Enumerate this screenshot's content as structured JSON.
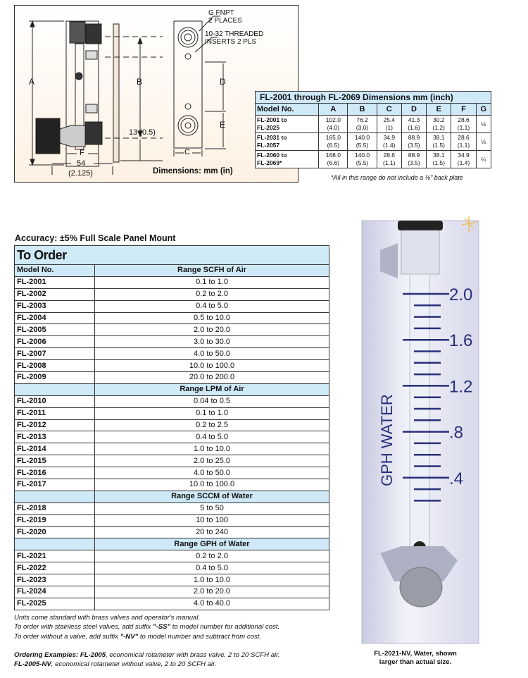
{
  "drawing": {
    "labels": {
      "g_fnpt": "G FNPT",
      "two_places": "2 PLACES",
      "threaded": "10-32 THREADED",
      "inserts": "INSERTS 2 PLS",
      "a": "A",
      "b": "B",
      "c": "C",
      "d": "D",
      "e": "E",
      "f": "F",
      "offset": "13 (0.5)",
      "width_mm": "54",
      "width_in": "(2.125)",
      "caption": "Dimensions: mm (in)"
    }
  },
  "dimensions": {
    "title": "FL-2001 through FL-2069 Dimensions mm (inch)",
    "headers": [
      "Model No.",
      "A",
      "B",
      "C",
      "D",
      "E",
      "F",
      "G"
    ],
    "rows": [
      {
        "model": [
          "FL-2001 to",
          "FL-2025"
        ],
        "vals": [
          [
            "102.0",
            "(4.0)"
          ],
          [
            "76.2",
            "(3.0)"
          ],
          [
            "25.4",
            "(1)"
          ],
          [
            "41.3",
            "(1.6)"
          ],
          [
            "30.2",
            "(1.2)"
          ],
          [
            "28.6",
            "(1.1)"
          ]
        ],
        "g": "⅛"
      },
      {
        "model": [
          "FL-2031 to",
          "FL-2057"
        ],
        "vals": [
          [
            "165.0",
            "(6.5)"
          ],
          [
            "140.0",
            "(5.5)"
          ],
          [
            "34.9",
            "(1.4)"
          ],
          [
            "88.9",
            "(3.5)"
          ],
          [
            "38.1",
            "(1.5)"
          ],
          [
            "28.6",
            "(1.1)"
          ]
        ],
        "g": "⅛"
      },
      {
        "model": [
          "FL-2060 to",
          "FL-2069*"
        ],
        "vals": [
          [
            "168.0",
            "(6.6)"
          ],
          [
            "140.0",
            "(5.5)"
          ],
          [
            "28.6",
            "(1.1)"
          ],
          [
            "88.9",
            "(3.5)"
          ],
          [
            "38.1",
            "(1.5)"
          ],
          [
            "34.9",
            "(1.4)"
          ]
        ],
        "g": "¼"
      }
    ],
    "note": "*All in this range do not include a ⅛\" back plate"
  },
  "accuracy": "Accuracy: ±5% Full Scale Panel Mount",
  "order": {
    "title": "To Order",
    "model_header": "Model No.",
    "sections": [
      {
        "range": "Range SCFH of Air",
        "rows": [
          [
            "FL-2001",
            "0.1 to 1.0"
          ],
          [
            "FL-2002",
            "0.2 to 2.0"
          ],
          [
            "FL-2003",
            "0.4 to 5.0"
          ],
          [
            "FL-2004",
            "0.5 to 10.0"
          ],
          [
            "FL-2005",
            "2.0 to 20.0"
          ],
          [
            "FL-2006",
            "3.0 to 30.0"
          ],
          [
            "FL-2007",
            "4.0 to 50.0"
          ],
          [
            "FL-2008",
            "10.0 to 100.0"
          ],
          [
            "FL-2009",
            "20.0 to 200.0"
          ]
        ]
      },
      {
        "range": "Range LPM of Air",
        "rows": [
          [
            "FL-2010",
            "0.04 to 0.5"
          ],
          [
            "FL-2011",
            "0.1 to 1.0"
          ],
          [
            "FL-2012",
            "0.2 to 2.5"
          ],
          [
            "FL-2013",
            "0.4 to 5.0"
          ],
          [
            "FL-2014",
            "1.0 to 10.0"
          ],
          [
            "FL-2015",
            "2.0 to 25.0"
          ],
          [
            "FL-2016",
            "4.0 to 50.0"
          ],
          [
            "FL-2017",
            "10.0 to 100.0"
          ]
        ]
      },
      {
        "range": "Range SCCM of Water",
        "rows": [
          [
            "FL-2018",
            "5 to 50"
          ],
          [
            "FL-2019",
            "10 to 100"
          ],
          [
            "FL-2020",
            "20 to 240"
          ]
        ]
      },
      {
        "range": "Range GPH of Water",
        "rows": [
          [
            "FL-2021",
            "0.2 to 2.0"
          ],
          [
            "FL-2022",
            "0.4 to 5.0"
          ],
          [
            "FL-2023",
            "1.0 to 10.0"
          ],
          [
            "FL-2024",
            "2.0 to 20.0"
          ],
          [
            "FL-2025",
            "4.0 to 40.0"
          ]
        ]
      }
    ]
  },
  "notes": {
    "line1": "Units come standard with brass valves and operator's manual.",
    "line2a": "To order with stainless steel valves, add suffix ",
    "line2b": "\"-SS\"",
    "line2c": " to model number for additional cost.",
    "line3a": "To order without a valve, add suffix ",
    "line3b": "\"-NV\"",
    "line3c": " to model number and subtract from cost.",
    "ex1a": "Ordering Examples: FL-2005",
    "ex1b": ", economical rotameter with brass valve, 2 to 20 SCFH air.",
    "ex2a": "FL-2005-NV",
    "ex2b": ", economical rotameter without valve, 2 to 20 SCFH air."
  },
  "photo": {
    "scale_label": "GPH WATER",
    "scale_ticks": [
      "2.0",
      "1.6",
      "1.2",
      ".8",
      ".4"
    ],
    "caption1": "FL-2021-NV, Water, shown",
    "caption2": "larger than actual size.",
    "scale_color": "#2a2f7a"
  }
}
